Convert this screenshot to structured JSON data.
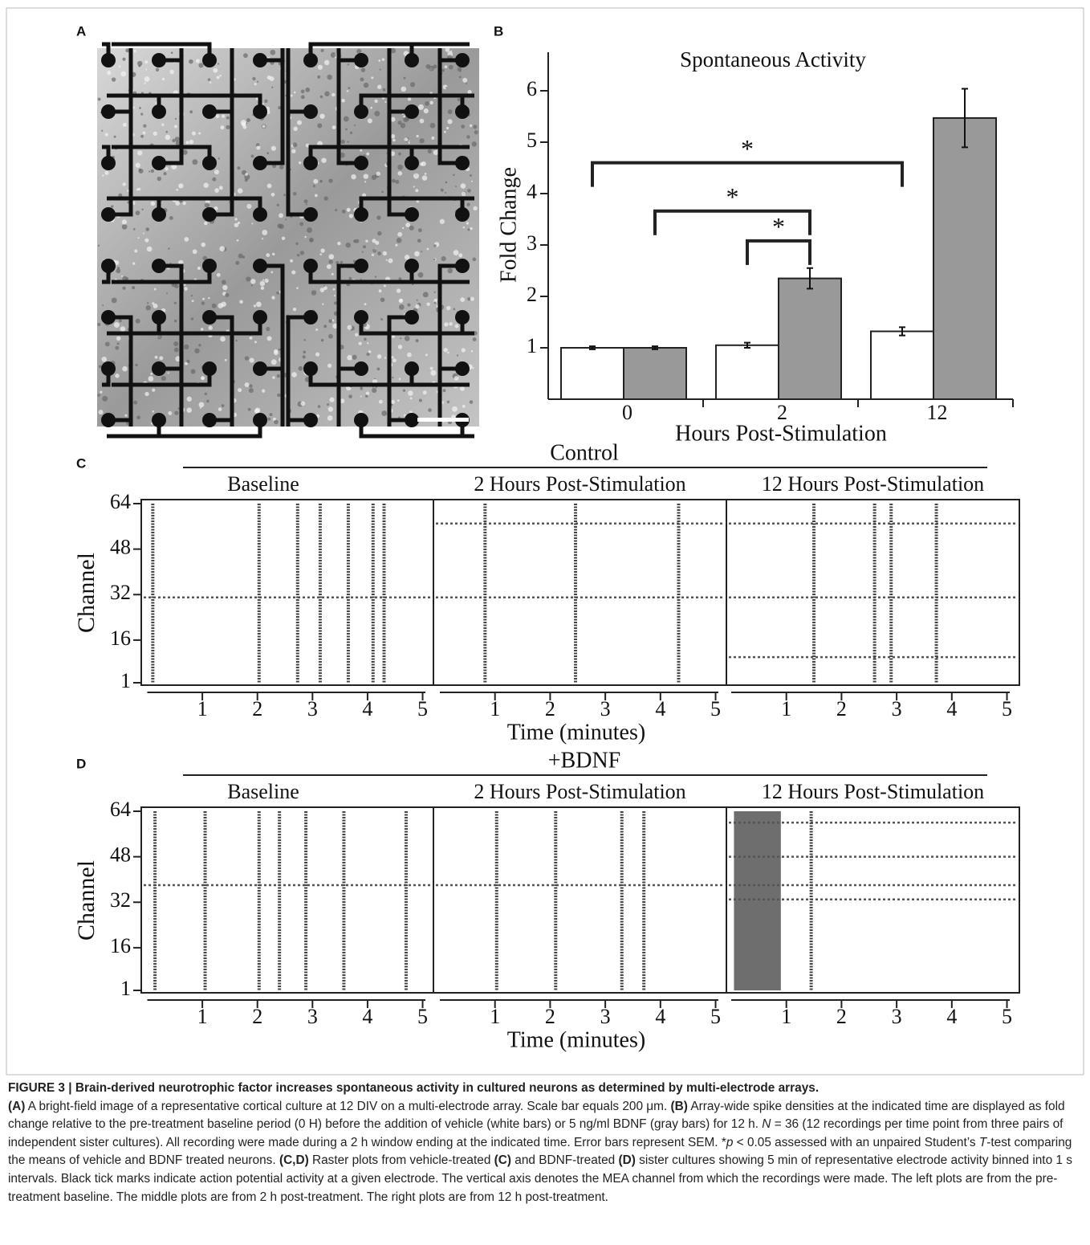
{
  "panel_labels": [
    "A",
    "B",
    "C",
    "D"
  ],
  "chart_data": [
    {
      "type": "bar",
      "title": "Spontaneous Activity",
      "x_label": "Hours Post-Stimulation",
      "y_label": "Fold Change",
      "categories": [
        "0",
        "2",
        "12"
      ],
      "series": [
        {
          "color": "#ffffff",
          "values": [
            1,
            1.05,
            1.32
          ],
          "errors": [
            0.03,
            0.05,
            0.08
          ]
        },
        {
          "color": "#999999",
          "values": [
            1,
            2.35,
            5.47
          ],
          "errors": [
            0.03,
            0.2,
            0.57
          ]
        }
      ],
      "ylim": [
        0,
        6.75
      ],
      "yticks": [
        1,
        2,
        3,
        4,
        5,
        6
      ],
      "annotations": [
        {
          "label": "*",
          "y": 4.6,
          "from": [
            0,
            0
          ],
          "to": [
            0,
            2
          ]
        },
        {
          "label": "*",
          "y": 3.66,
          "from": [
            1,
            0
          ],
          "to": [
            1,
            1
          ]
        },
        {
          "label": "*",
          "y": 3.08,
          "from": [
            0,
            1
          ],
          "to": [
            1,
            1
          ]
        }
      ]
    },
    {
      "type": "raster",
      "title": "Control",
      "y_label": "Channel",
      "x_label": "Time (minutes)",
      "ylim": [
        1,
        64
      ],
      "yticks": [
        1,
        16,
        32,
        48,
        64
      ],
      "xlim": [
        0,
        5
      ],
      "xticks": [
        1,
        2,
        3,
        4,
        5
      ],
      "panels": [
        {
          "title": "Baseline",
          "bursts": [
            0.1,
            2.03,
            2.73,
            3.14,
            3.65,
            4.1,
            4.3
          ],
          "active_channels": [
            31
          ],
          "dense_periods": []
        },
        {
          "title": "2 Hours Post-Stimulation",
          "bursts": [
            0.82,
            2.46,
            4.33
          ],
          "active_channels": [
            31,
            57
          ],
          "dense_periods": []
        },
        {
          "title": "12 Hours Post-Stimulation",
          "bursts": [
            1.5,
            2.6,
            2.9,
            3.72
          ],
          "active_channels": [
            10,
            31,
            57
          ],
          "dense_periods": []
        }
      ]
    },
    {
      "type": "raster",
      "title": "+BDNF",
      "y_label": "Channel",
      "x_label": "Time (minutes)",
      "ylim": [
        1,
        64
      ],
      "yticks": [
        1,
        16,
        32,
        48,
        64
      ],
      "xlim": [
        0,
        5
      ],
      "xticks": [
        1,
        2,
        3,
        4,
        5
      ],
      "panels": [
        {
          "title": "Baseline",
          "bursts": [
            0.14,
            1.05,
            2.03,
            2.4,
            2.88,
            3.57,
            4.7
          ],
          "active_channels": [
            38
          ],
          "dense_periods": []
        },
        {
          "title": "2 Hours Post-Stimulation",
          "bursts": [
            1.03,
            2.1,
            3.3,
            3.7
          ],
          "active_channels": [
            38
          ],
          "dense_periods": []
        },
        {
          "title": "12 Hours Post-Stimulation",
          "bursts": [
            1.45
          ],
          "active_channels": [
            33,
            38,
            48,
            60
          ],
          "dense_periods": [
            [
              0.05,
              0.9
            ]
          ]
        }
      ]
    }
  ],
  "caption": {
    "title": "FIGURE 3 | Brain-derived neurotrophic factor increases spontaneous activity in cultured neurons as determined by multi-electrode arrays.",
    "body": [
      {
        "text": "(A)",
        "style": "bold"
      },
      {
        "text": " A bright-field image of a representative cortical culture at 12 DIV on a multi-electrode array. Scale bar equals 200 μm. "
      },
      {
        "text": "(B)",
        "style": "bold"
      },
      {
        "text": " Array-wide spike densities at the indicated time are displayed as fold change relative to the pre-treatment baseline period (0 H) before the addition of vehicle (white bars) or 5 ng/ml BDNF (gray bars) for 12 h. "
      },
      {
        "text": "N",
        "style": "italic"
      },
      {
        "text": " = 36 (12 recordings per time point from three pairs of independent sister cultures). All recording were made during a 2 h window ending at the indicated time. Error bars represent SEM. *"
      },
      {
        "text": "p",
        "style": "italic"
      },
      {
        "text": " < 0.05 assessed with an unpaired Student’s "
      },
      {
        "text": "T",
        "style": "italic"
      },
      {
        "text": "-test comparing the means of vehicle and BDNF treated neurons. "
      },
      {
        "text": "(C,D)",
        "style": "bold"
      },
      {
        "text": " Raster plots from vehicle-treated "
      },
      {
        "text": "(C)",
        "style": "bold"
      },
      {
        "text": " and BDNF-treated "
      },
      {
        "text": "(D)",
        "style": "bold"
      },
      {
        "text": " sister cultures showing 5 min of representative electrode activity binned into 1 s intervals. Black tick marks indicate action potential activity at a given electrode. The vertical axis denotes the MEA channel from which the recordings were made. The left plots are from the pre-treatment baseline. The middle plots are from 2 h post-treatment. The right plots are from 12 h post-treatment."
      }
    ]
  }
}
